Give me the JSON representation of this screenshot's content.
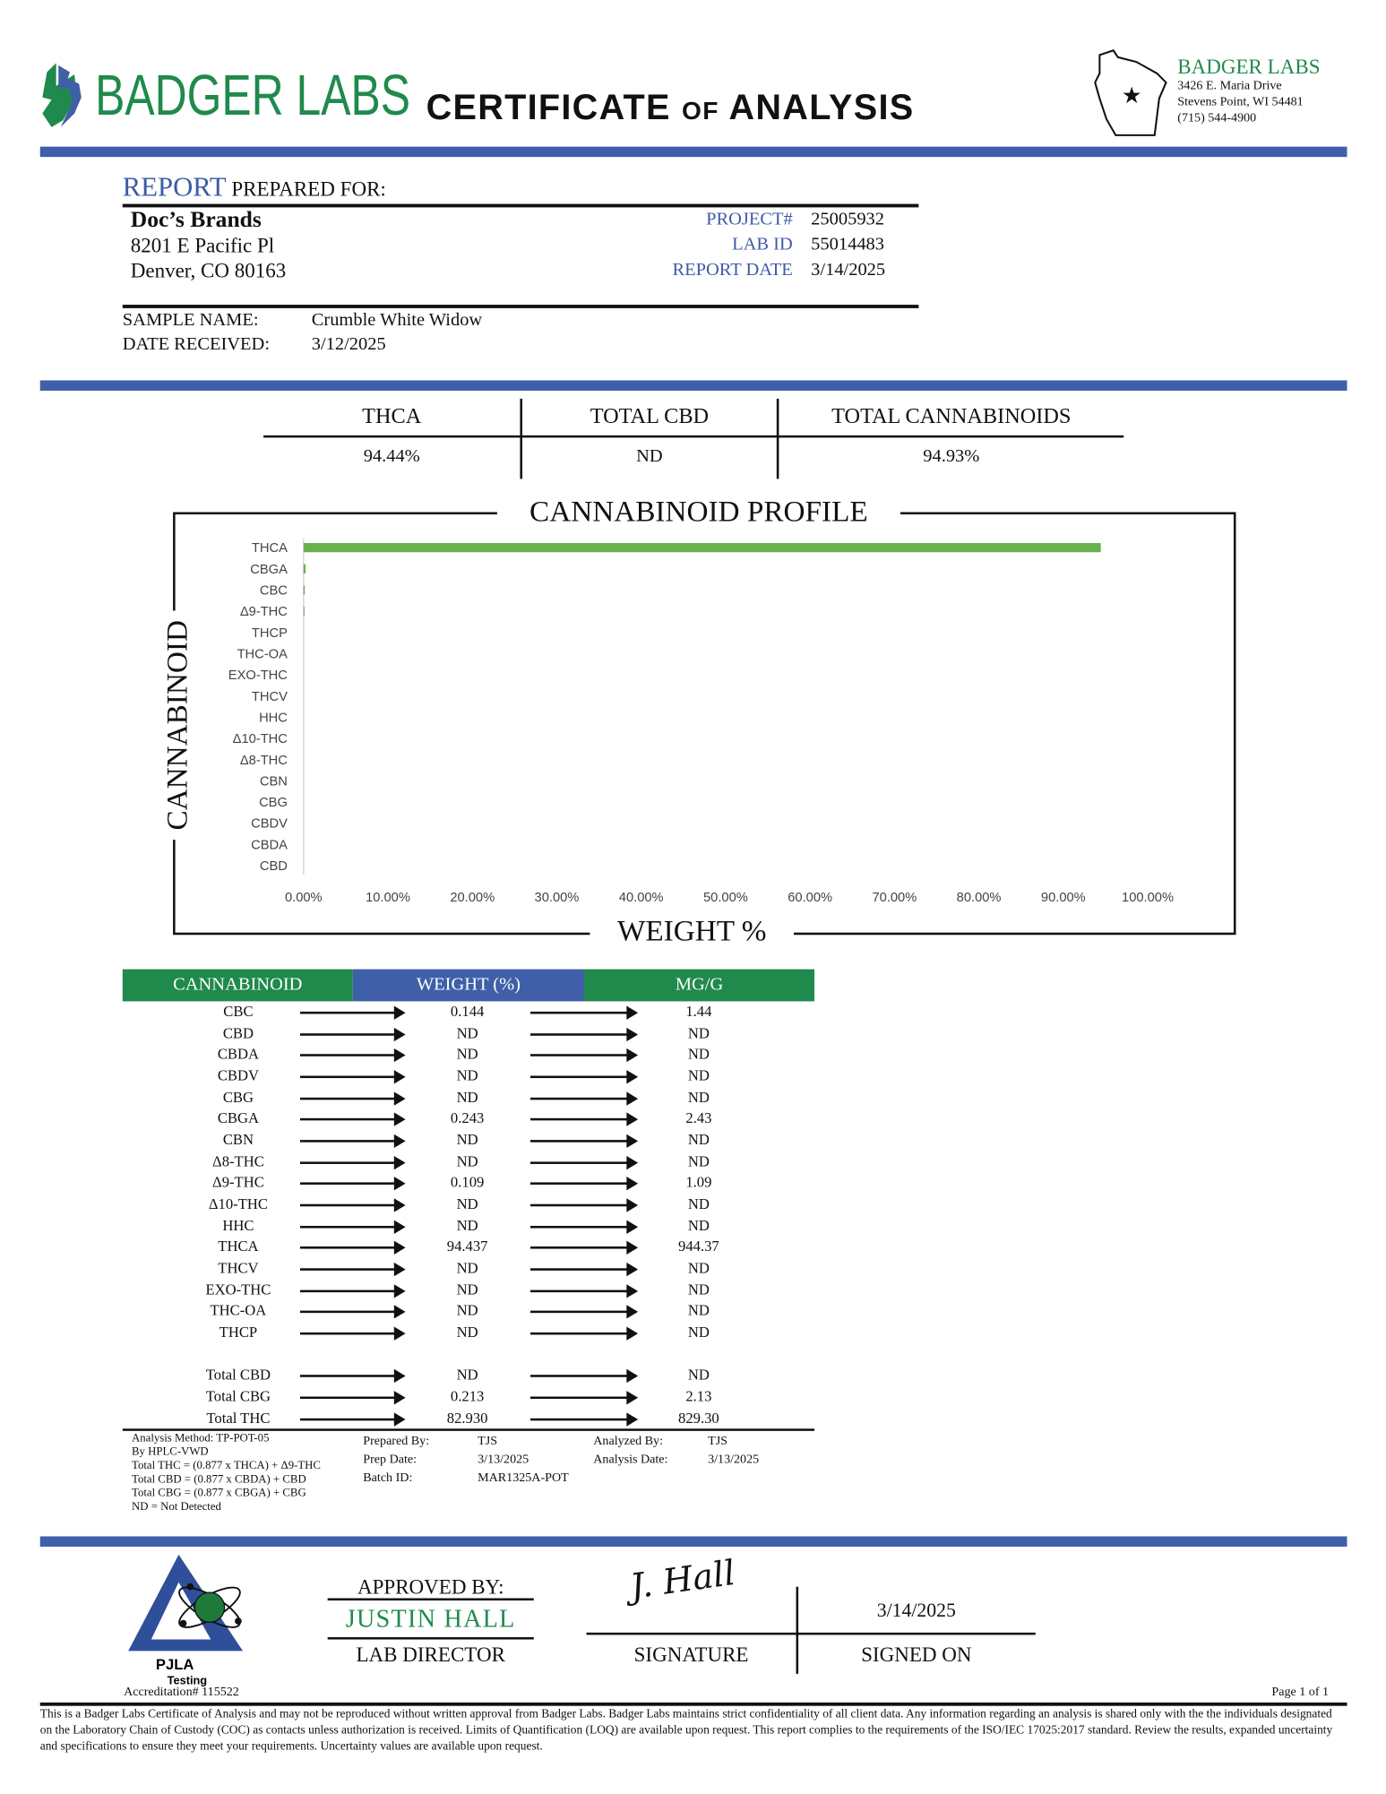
{
  "header": {
    "logo_text": "BADGER LABS",
    "title_main1": "CERTIFICATE",
    "title_of": "OF",
    "title_main2": "ANALYSIS",
    "address": {
      "name": "BADGER LABS",
      "street": "3426 E. Maria Drive",
      "city": "Stevens Point, WI 54481",
      "phone": "(715) 544-4900"
    }
  },
  "report": {
    "heading_accent": "REPORT",
    "heading_rest": "PREPARED FOR:",
    "client_name": "Doc’s Brands",
    "client_address1": "8201 E Pacific Pl",
    "client_address2": "Denver, CO 80163",
    "project_label": "PROJECT#",
    "project": "25005932",
    "lab_id_label": "LAB ID",
    "lab_id": "55014483",
    "report_date_label": "REPORT DATE",
    "report_date": "3/14/2025",
    "sample_name_label": "SAMPLE NAME:",
    "sample_name": "Crumble White Widow",
    "date_received_label": "DATE RECEIVED:",
    "date_received": "3/12/2025"
  },
  "summary": [
    {
      "label": "THCA",
      "value": "94.44%"
    },
    {
      "label": "TOTAL CBD",
      "value": "ND"
    },
    {
      "label": "TOTAL CANNABINOIDS",
      "value": "94.93%"
    }
  ],
  "chart_data": {
    "type": "bar",
    "orientation": "horizontal",
    "title": "CANNABINOID PROFILE",
    "xlabel": "WEIGHT %",
    "ylabel": "CANNABINOID",
    "categories": [
      "THCA",
      "CBGA",
      "CBC",
      "Δ9-THC",
      "THCP",
      "THC-OA",
      "EXO-THC",
      "THCV",
      "HHC",
      "Δ10-THC",
      "Δ8-THC",
      "CBN",
      "CBG",
      "CBDV",
      "CBDA",
      "CBD"
    ],
    "values": [
      94.437,
      0.243,
      0.144,
      0.109,
      0,
      0,
      0,
      0,
      0,
      0,
      0,
      0,
      0,
      0,
      0,
      0
    ],
    "xlim": [
      0,
      100
    ],
    "x_ticks": [
      "0.00%",
      "10.00%",
      "20.00%",
      "30.00%",
      "40.00%",
      "50.00%",
      "60.00%",
      "70.00%",
      "80.00%",
      "90.00%",
      "100.00%"
    ],
    "grid": false,
    "bar_color": "#6ab04c"
  },
  "table": {
    "headers": [
      "CANNABINOID",
      "WEIGHT (%)",
      "MG/G"
    ],
    "header_colors": [
      "#1f8a4c",
      "#3f5fa8",
      "#1f8a4c"
    ],
    "rows": [
      [
        "CBC",
        "0.144",
        "1.44"
      ],
      [
        "CBD",
        "ND",
        "ND"
      ],
      [
        "CBDA",
        "ND",
        "ND"
      ],
      [
        "CBDV",
        "ND",
        "ND"
      ],
      [
        "CBG",
        "ND",
        "ND"
      ],
      [
        "CBGA",
        "0.243",
        "2.43"
      ],
      [
        "CBN",
        "ND",
        "ND"
      ],
      [
        "Δ8-THC",
        "ND",
        "ND"
      ],
      [
        "Δ9-THC",
        "0.109",
        "1.09"
      ],
      [
        "Δ10-THC",
        "ND",
        "ND"
      ],
      [
        "HHC",
        "ND",
        "ND"
      ],
      [
        "THCA",
        "94.437",
        "944.37"
      ],
      [
        "THCV",
        "ND",
        "ND"
      ],
      [
        "EXO-THC",
        "ND",
        "ND"
      ],
      [
        "THC-OA",
        "ND",
        "ND"
      ],
      [
        "THCP",
        "ND",
        "ND"
      ]
    ],
    "totals": [
      [
        "Total CBD",
        "ND",
        "ND"
      ],
      [
        "Total CBG",
        "0.213",
        "2.13"
      ],
      [
        "Total THC",
        "82.930",
        "829.30"
      ]
    ]
  },
  "notes": {
    "method": [
      "Analysis Method: TP-POT-05",
      "By HPLC-VWD",
      "Total THC = (0.877 x  THCA) + Δ9-THC",
      "Total CBD = (0.877 x  CBDA) + CBD",
      "Total CBG = (0.877 x  CBGA) + CBG",
      "ND = Not Detected"
    ],
    "prepared_by_label": "Prepared By:",
    "prepared_by": "TJS",
    "prep_date_label": "Prep Date:",
    "prep_date": "3/13/2025",
    "batch_label": "Batch ID:",
    "batch": "MAR1325A-POT",
    "analyzed_by_label": "Analyzed By:",
    "analyzed_by": "TJS",
    "analysis_date_label": "Analysis Date:",
    "analysis_date": "3/13/2025"
  },
  "approval": {
    "approved_by_label": "APPROVED BY:",
    "approver": "JUSTIN HALL",
    "role": "LAB DIRECTOR",
    "signature_label": "SIGNATURE",
    "signed_on_label": "SIGNED ON",
    "signed_on": "3/14/2025",
    "signature_text": "J. Hall",
    "pjla_text": "PJLA",
    "pjla_sub": "Testing",
    "accreditation": "Accreditation# 115522",
    "page": "Page 1 of 1"
  },
  "disclaimer": "This is a Badger Labs Certificate of Analysis and may not be reproduced without written approval from Badger Labs. Badger Labs maintains strict confidentiality of all client data. Any information regarding an analysis is shared only with the the individuals designated on the Laboratory Chain of Custody (COC) as contacts unless authorization is received. Limits of Quantification (LOQ) are available upon request. This report complies to the requirements of the ISO/IEC 17025:2017 standard. Review the results, expanded uncertainty and specifications to ensure they meet your requirements. Uncertainty values are available upon request."
}
